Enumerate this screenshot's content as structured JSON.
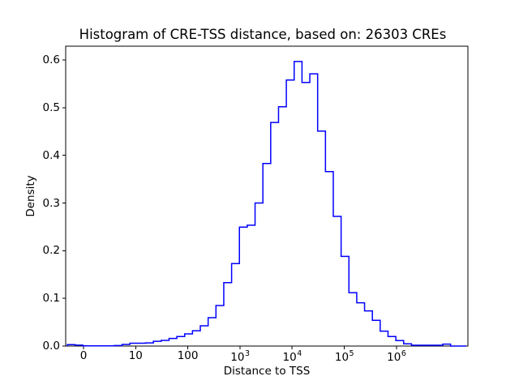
{
  "figure": {
    "background": "#ffffff",
    "text_color": "#000000"
  },
  "chart_data": {
    "type": "bar",
    "subtype": "step-histogram",
    "title": "Histogram of CRE-TSS distance, based on: 26303 CREs",
    "xlabel": "Distance to TSS",
    "ylabel": "Density",
    "cre_count": 26303,
    "line_color": "#0000ff",
    "axis_color": "#000000",
    "grid": "off",
    "legend": "none",
    "x_scale": "symlog: linear from 0 to 10, then logarithmic decades; u-units: u=v/10 for v<=10, u=1+log10(v/10) for v>10",
    "x_ticks": [
      {
        "label": "0",
        "u": 0,
        "value": 0
      },
      {
        "label": "10",
        "u": 1,
        "value": 10
      },
      {
        "label": "100",
        "u": 2,
        "value": 100
      },
      {
        "label": "10",
        "sup": "3",
        "u": 3,
        "value": 1000
      },
      {
        "label": "10",
        "sup": "4",
        "u": 4,
        "value": 10000
      },
      {
        "label": "10",
        "sup": "5",
        "u": 5,
        "value": 100000
      },
      {
        "label": "10",
        "sup": "6",
        "u": 6,
        "value": 1000000
      }
    ],
    "y_ticks": [
      0.0,
      0.1,
      0.2,
      0.3,
      0.4,
      0.5,
      0.6
    ],
    "x_range_u": [
      -0.342,
      7.372
    ],
    "y_range": [
      0,
      0.629
    ],
    "bins": {
      "start_u": -0.31,
      "width_u": 0.15,
      "heights": [
        0.003,
        0.002,
        0.0005,
        0.0005,
        0.0005,
        0.0005,
        0.001,
        0.0035,
        0.006,
        0.006,
        0.0065,
        0.01,
        0.012,
        0.016,
        0.02,
        0.0255,
        0.032,
        0.0425,
        0.0595,
        0.085,
        0.133,
        0.173,
        0.2495,
        0.2535,
        0.3,
        0.383,
        0.469,
        0.502,
        0.558,
        0.597,
        0.553,
        0.571,
        0.451,
        0.366,
        0.272,
        0.188,
        0.112,
        0.0908,
        0.0738,
        0.054,
        0.0313,
        0.02,
        0.0114,
        0.0046,
        0.0017,
        0.0017,
        0.0017,
        0.0017,
        0.004,
        0.0,
        0.0
      ]
    },
    "peak": {
      "density": 0.597,
      "at_value_approx": 13000
    }
  }
}
